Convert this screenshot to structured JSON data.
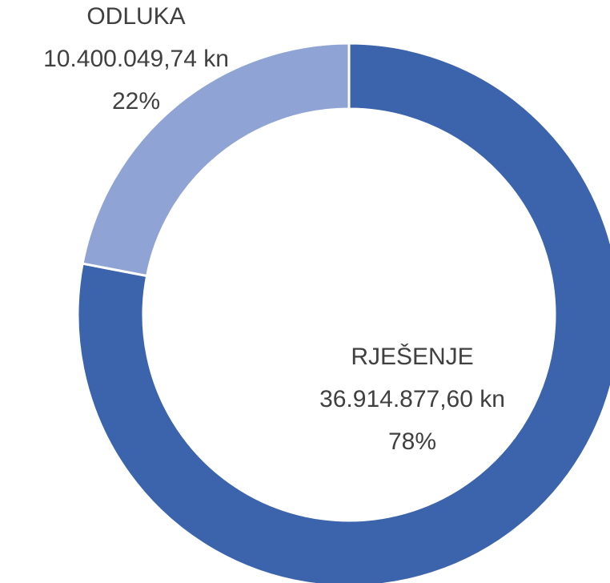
{
  "chart_data": {
    "type": "donut",
    "categories": [
      "RJEŠENJE",
      "ODLUKA"
    ],
    "values": [
      36914877.6,
      10400049.74
    ],
    "value_labels": [
      "36.914.877,60 kn",
      "10.400.049,74 kn"
    ],
    "percentages": [
      78,
      22
    ],
    "percentage_labels": [
      "78%",
      "22%"
    ],
    "colors": [
      "#3c64ad",
      "#8fa3d4"
    ]
  }
}
